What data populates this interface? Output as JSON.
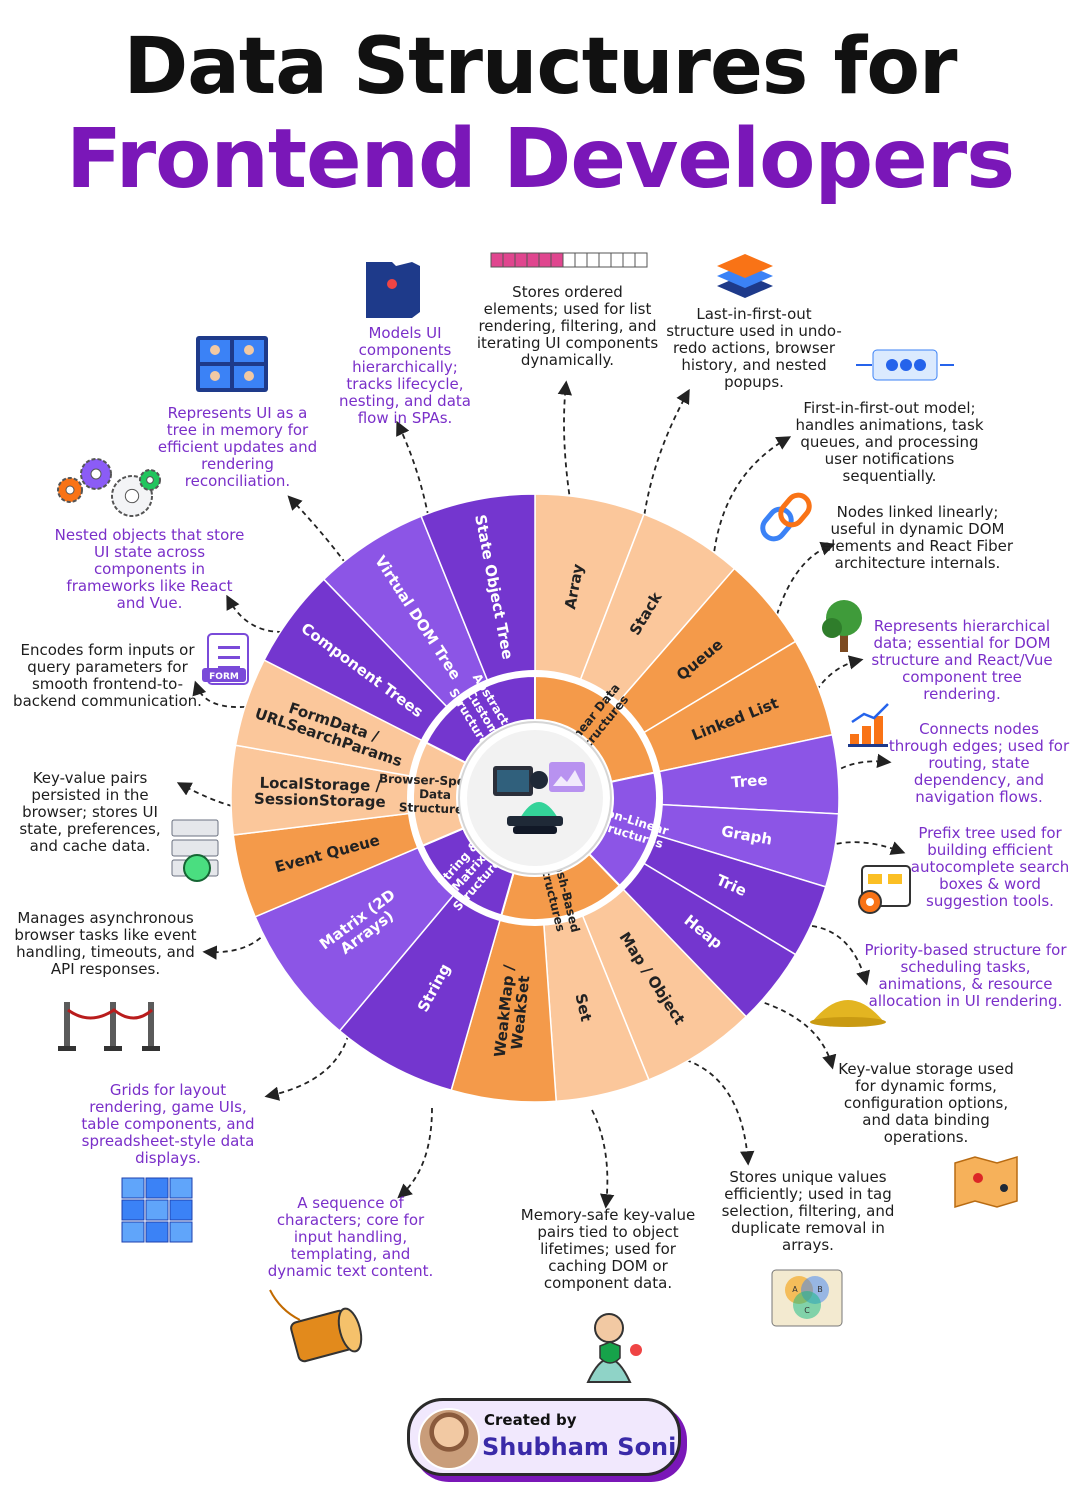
{
  "title_line1": "Data Structures for",
  "title_line2": "Frontend Developers",
  "colors": {
    "title_accent": "#7a17b8",
    "purple_dark": "#7436cf",
    "purple_mid": "#8c55e6",
    "orange": "#f49a4a",
    "peach": "#fbc79b",
    "arrow": "#222222"
  },
  "center_icon": "developer-laptop-icon",
  "categories": [
    {
      "id": "linear",
      "label": "Linear Data Structures"
    },
    {
      "id": "nonlinear",
      "label": "Non-Linear Structures"
    },
    {
      "id": "hash",
      "label": "Hash-Based Structures"
    },
    {
      "id": "string",
      "label": "String & Matrix Structures"
    },
    {
      "id": "browser",
      "label": "Browser-Specific Data Structures"
    },
    {
      "id": "abstract",
      "label": "Abstract & Custom Structures"
    }
  ],
  "segments": [
    {
      "label": "Array",
      "description": "Stores ordered elements; used for list rendering, filtering, and iterating UI components dynamically.",
      "icon": "array-blocks-icon"
    },
    {
      "label": "Stack",
      "description": "Last-in-first-out structure used in undo-redo actions, browser history, and nested popups.",
      "icon": "layers-stack-icon"
    },
    {
      "label": "Queue",
      "description": "First-in-first-out model; handles animations, task queues, and processing user notifications sequentially.",
      "icon": "queue-arrows-icon"
    },
    {
      "label": "Linked List",
      "description": "Nodes linked linearly; useful in dynamic DOM elements and React Fiber architecture internals.",
      "icon": "chain-link-icon"
    },
    {
      "label": "Tree",
      "description": "Represents hierarchical data; essential for DOM structure and React/Vue component tree rendering.",
      "icon": "tree-icon"
    },
    {
      "label": "Graph",
      "description": "Connects nodes through edges; used for routing, state dependency, and navigation flows.",
      "icon": "bar-chart-icon"
    },
    {
      "label": "Trie",
      "description": "Prefix tree used for building efficient autocomplete search boxes & word suggestion tools.",
      "icon": "folder-gear-icon"
    },
    {
      "label": "Heap",
      "description": "Priority-based structure for scheduling tasks, animations, & resource allocation in UI rendering.",
      "icon": "coin-heap-icon"
    },
    {
      "label": "Map / Object",
      "description": "Key-value storage used for dynamic forms, configuration options, and data binding operations.",
      "icon": "folded-map-icon"
    },
    {
      "label": "Set",
      "description": "Stores unique values efficiently; used in tag selection, filtering, and duplicate removal in arrays.",
      "icon": "venn-diagram-icon"
    },
    {
      "label": "WeakMap / WeakSet",
      "description": "Memory-safe key-value pairs tied to object lifetimes; used for caching DOM or component data.",
      "icon": "secure-user-icon"
    },
    {
      "label": "String",
      "description": "A sequence of characters; core for input handling, templating, and dynamic text content.",
      "icon": "thread-spool-icon"
    },
    {
      "label": "Matrix (2D Arrays)",
      "description": "Grids for layout rendering, game UIs, table components, and spreadsheet-style data displays.",
      "icon": "cube-grid-icon"
    },
    {
      "label": "Event Queue",
      "description": "Manages asynchronous browser tasks like event handling, timeouts, and API responses.",
      "icon": "queue-barrier-icon"
    },
    {
      "label": "LocalStorage / SessionStorage",
      "description": "Key-value pairs persisted in the browser; stores UI state, preferences, and cache data.",
      "icon": "server-sync-icon"
    },
    {
      "label": "FormData / URLSearchParams",
      "description": "Encodes form inputs or query parameters for smooth frontend-to-backend communication.",
      "icon": "form-icon"
    },
    {
      "label": "Component Trees",
      "description": "Nested objects that store UI state across components in frameworks like React and Vue.",
      "icon": "gears-icon"
    },
    {
      "label": "Virtual DOM Tree",
      "description": "Represents UI as a tree in memory for efficient updates and rendering reconciliation.",
      "icon": "video-call-icon"
    },
    {
      "label": "State Object Tree",
      "description": "Models UI components hierarchically; tracks lifecycle, nesting, and data flow in SPAs.",
      "icon": "state-map-icon"
    }
  ],
  "icon_texts": {
    "form": "FORM",
    "venn": [
      "A",
      "B",
      "C"
    ]
  },
  "credit": {
    "created_by": "Created by",
    "author": "Shubham Soni"
  }
}
